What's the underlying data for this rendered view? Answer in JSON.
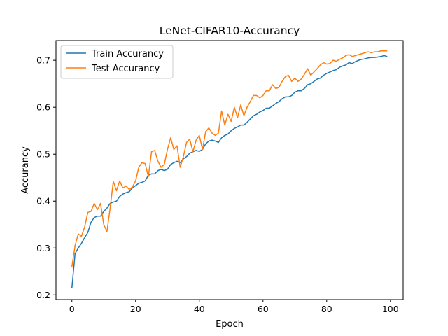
{
  "chart_data": {
    "type": "line",
    "title": "LeNet-CIFAR10-Accurancy",
    "xlabel": "Epoch",
    "ylabel": "Accurancy",
    "xlim": [
      -5,
      104
    ],
    "ylim": [
      0.19,
      0.742
    ],
    "xticks": [
      0,
      20,
      40,
      60,
      80,
      100
    ],
    "yticks": [
      0.2,
      0.3,
      0.4,
      0.5,
      0.6,
      0.7
    ],
    "grid": false,
    "legend_position": "top-left",
    "series": [
      {
        "name": "Train Accurancy",
        "color": "#1f77b4",
        "x": [
          0,
          1,
          2,
          3,
          4,
          5,
          6,
          7,
          8,
          9,
          10,
          11,
          12,
          13,
          14,
          15,
          16,
          17,
          18,
          19,
          20,
          21,
          22,
          23,
          24,
          25,
          26,
          27,
          28,
          29,
          30,
          31,
          32,
          33,
          34,
          35,
          36,
          37,
          38,
          39,
          40,
          41,
          42,
          43,
          44,
          45,
          46,
          47,
          48,
          49,
          50,
          51,
          52,
          53,
          54,
          55,
          56,
          57,
          58,
          59,
          60,
          61,
          62,
          63,
          64,
          65,
          66,
          67,
          68,
          69,
          70,
          71,
          72,
          73,
          74,
          75,
          76,
          77,
          78,
          79,
          80,
          81,
          82,
          83,
          84,
          85,
          86,
          87,
          88,
          89,
          90,
          91,
          92,
          93,
          94,
          95,
          96,
          97,
          98,
          99
        ],
        "y": [
          0.215,
          0.288,
          0.3,
          0.31,
          0.322,
          0.333,
          0.355,
          0.365,
          0.368,
          0.368,
          0.378,
          0.385,
          0.395,
          0.398,
          0.4,
          0.41,
          0.415,
          0.418,
          0.42,
          0.428,
          0.433,
          0.438,
          0.44,
          0.443,
          0.455,
          0.458,
          0.458,
          0.465,
          0.468,
          0.465,
          0.468,
          0.478,
          0.482,
          0.485,
          0.482,
          0.49,
          0.495,
          0.502,
          0.505,
          0.508,
          0.506,
          0.51,
          0.522,
          0.528,
          0.53,
          0.528,
          0.525,
          0.535,
          0.54,
          0.543,
          0.55,
          0.555,
          0.558,
          0.562,
          0.562,
          0.568,
          0.575,
          0.582,
          0.585,
          0.59,
          0.593,
          0.598,
          0.598,
          0.603,
          0.608,
          0.612,
          0.618,
          0.622,
          0.622,
          0.625,
          0.632,
          0.635,
          0.635,
          0.64,
          0.648,
          0.65,
          0.655,
          0.66,
          0.662,
          0.668,
          0.672,
          0.675,
          0.678,
          0.68,
          0.685,
          0.688,
          0.69,
          0.695,
          0.693,
          0.697,
          0.7,
          0.702,
          0.703,
          0.705,
          0.706,
          0.706,
          0.707,
          0.708,
          0.71,
          0.708
        ]
      },
      {
        "name": "Test Accurancy",
        "color": "#ff7f0e",
        "x": [
          0,
          1,
          2,
          3,
          4,
          5,
          6,
          7,
          8,
          9,
          10,
          11,
          12,
          13,
          14,
          15,
          16,
          17,
          18,
          19,
          20,
          21,
          22,
          23,
          24,
          25,
          26,
          27,
          28,
          29,
          30,
          31,
          32,
          33,
          34,
          35,
          36,
          37,
          38,
          39,
          40,
          41,
          42,
          43,
          44,
          45,
          46,
          47,
          48,
          49,
          50,
          51,
          52,
          53,
          54,
          55,
          56,
          57,
          58,
          59,
          60,
          61,
          62,
          63,
          64,
          65,
          66,
          67,
          68,
          69,
          70,
          71,
          72,
          73,
          74,
          75,
          76,
          77,
          78,
          79,
          80,
          81,
          82,
          83,
          84,
          85,
          86,
          87,
          88,
          89,
          90,
          91,
          92,
          93,
          94,
          95,
          96,
          97,
          98,
          99
        ],
        "y": [
          0.26,
          0.305,
          0.33,
          0.325,
          0.345,
          0.376,
          0.378,
          0.395,
          0.382,
          0.395,
          0.35,
          0.335,
          0.385,
          0.442,
          0.422,
          0.443,
          0.428,
          0.432,
          0.425,
          0.43,
          0.443,
          0.472,
          0.482,
          0.48,
          0.452,
          0.505,
          0.508,
          0.485,
          0.472,
          0.478,
          0.51,
          0.535,
          0.51,
          0.518,
          0.472,
          0.495,
          0.525,
          0.532,
          0.505,
          0.53,
          0.54,
          0.51,
          0.548,
          0.556,
          0.545,
          0.54,
          0.545,
          0.592,
          0.562,
          0.585,
          0.57,
          0.6,
          0.578,
          0.605,
          0.582,
          0.6,
          0.612,
          0.625,
          0.625,
          0.62,
          0.625,
          0.635,
          0.635,
          0.648,
          0.64,
          0.642,
          0.655,
          0.665,
          0.668,
          0.655,
          0.662,
          0.655,
          0.66,
          0.67,
          0.682,
          0.668,
          0.675,
          0.682,
          0.69,
          0.695,
          0.692,
          0.693,
          0.7,
          0.698,
          0.702,
          0.705,
          0.71,
          0.712,
          0.708,
          0.71,
          0.712,
          0.714,
          0.716,
          0.718,
          0.716,
          0.718,
          0.718,
          0.72,
          0.72,
          0.72
        ]
      }
    ]
  }
}
